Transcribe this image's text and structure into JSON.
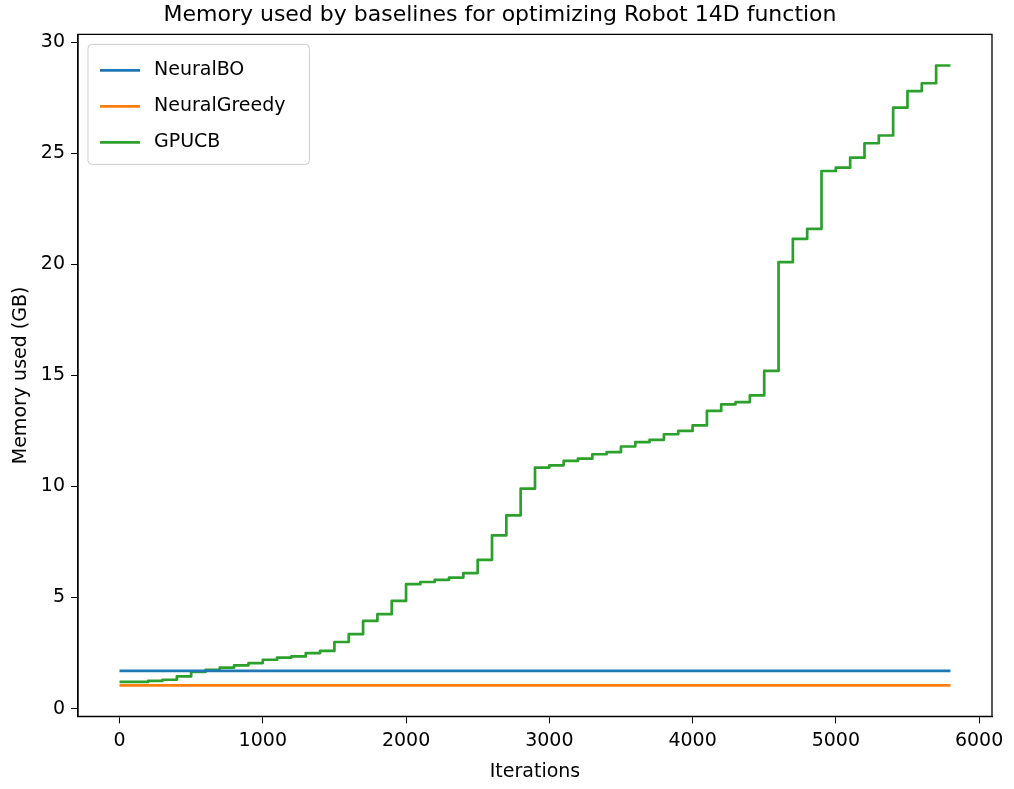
{
  "chart_data": {
    "type": "step",
    "title": "Memory used by baselines for optimizing Robot 14D function",
    "xlabel": "Iterations",
    "ylabel": "Memory used (GB)",
    "xlim": [
      -290,
      6090
    ],
    "xticks": [
      0,
      1000,
      2000,
      3000,
      4000,
      5000,
      6000
    ],
    "ylim": [
      -0.35,
      30.35
    ],
    "yticks": [
      0,
      5,
      10,
      15,
      20,
      25,
      30
    ],
    "grid": false,
    "legend": "top left",
    "marker": "none",
    "line_style": "solid",
    "series": [
      {
        "name": "NeuralBO",
        "color": "#1f77b4",
        "x": [
          0,
          5800
        ],
        "values": [
          1.7,
          1.7
        ]
      },
      {
        "name": "NeuralGreedy",
        "color": "#ff7f0e",
        "x": [
          0,
          5800
        ],
        "values": [
          1.05,
          1.05
        ]
      },
      {
        "name": "GPUCB",
        "color": "#2ca02c",
        "x": [
          0,
          100,
          200,
          300,
          400,
          500,
          600,
          700,
          800,
          900,
          1000,
          1100,
          1200,
          1300,
          1400,
          1500,
          1600,
          1700,
          1800,
          1900,
          2000,
          2100,
          2200,
          2300,
          2400,
          2500,
          2600,
          2700,
          2800,
          2900,
          3000,
          3100,
          3200,
          3300,
          3400,
          3500,
          3600,
          3700,
          3800,
          3900,
          4000,
          4100,
          4200,
          4300,
          4400,
          4500,
          4600,
          4700,
          4800,
          4900,
          5000,
          5100,
          5200,
          5300,
          5400,
          5500,
          5600,
          5700,
          5800
        ],
        "values": [
          1.2,
          1.2,
          1.25,
          1.3,
          1.45,
          1.65,
          1.75,
          1.85,
          1.95,
          2.05,
          2.2,
          2.3,
          2.35,
          2.5,
          2.6,
          3.0,
          3.35,
          3.95,
          4.25,
          4.85,
          5.6,
          5.7,
          5.8,
          5.9,
          6.1,
          6.7,
          7.8,
          8.7,
          9.9,
          10.85,
          10.95,
          11.15,
          11.25,
          11.45,
          11.55,
          11.8,
          12.0,
          12.1,
          12.35,
          12.5,
          12.75,
          13.4,
          13.7,
          13.8,
          14.1,
          15.2,
          20.1,
          21.15,
          21.6,
          24.2,
          24.35,
          24.8,
          25.45,
          25.8,
          27.05,
          27.8,
          28.15,
          28.95,
          28.95
        ]
      }
    ]
  }
}
